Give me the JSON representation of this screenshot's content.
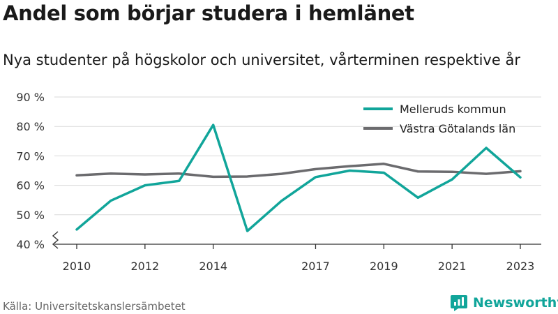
{
  "title": "Andel som börjar studera i hemlänet",
  "subtitle": "Nya studenter på högskolor och universitet, vårterminen respektive år",
  "source": "Källa: Universitetskanslersämbetet",
  "brand": {
    "name": "Newsworthy",
    "icon": "newsworthy-logo-icon",
    "color": "#11a59a"
  },
  "chart_data": {
    "type": "line",
    "x": [
      2010,
      2011,
      2012,
      2013,
      2014,
      2015,
      2016,
      2017,
      2018,
      2019,
      2020,
      2021,
      2022,
      2023
    ],
    "x_ticks": [
      2010,
      2012,
      2014,
      2017,
      2019,
      2021,
      2023
    ],
    "y_ticks": [
      40,
      50,
      60,
      70,
      80,
      90
    ],
    "y_tick_labels": [
      "40 %",
      "50 %",
      "60 %",
      "70 %",
      "80 %",
      "90 %"
    ],
    "ylim": [
      40,
      90
    ],
    "y_axis_break": true,
    "grid": true,
    "legend_position": "top-right",
    "series": [
      {
        "name": "Melleruds kommun",
        "color": "#11a59a",
        "values": [
          45.0,
          54.8,
          60.0,
          61.5,
          80.5,
          44.5,
          54.7,
          62.8,
          65.0,
          64.3,
          55.8,
          62.0,
          72.7,
          62.7
        ]
      },
      {
        "name": "Västra Götalands län",
        "color": "#6b6b6e",
        "values": [
          63.4,
          64.0,
          63.7,
          64.0,
          62.9,
          63.0,
          63.9,
          65.5,
          66.5,
          67.3,
          64.7,
          64.6,
          63.9,
          64.8
        ]
      }
    ]
  }
}
